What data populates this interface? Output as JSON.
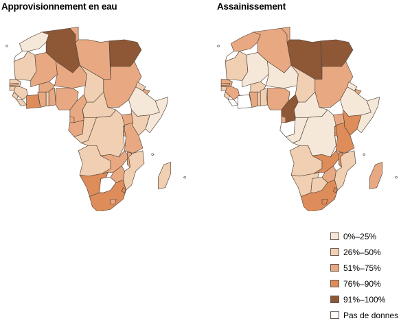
{
  "maps": [
    {
      "title": "Approvisionnement en eau",
      "regions": [
        {
          "id": "morocco",
          "cat": 0
        },
        {
          "id": "western-sahara",
          "cat": 5
        },
        {
          "id": "algeria",
          "cat": 4
        },
        {
          "id": "tunisia",
          "cat": 2
        },
        {
          "id": "libya",
          "cat": 2
        },
        {
          "id": "egypt",
          "cat": 4
        },
        {
          "id": "mauritania",
          "cat": 1
        },
        {
          "id": "senegal",
          "cat": 1
        },
        {
          "id": "gambia",
          "cat": 2
        },
        {
          "id": "guinea-bissau",
          "cat": 1
        },
        {
          "id": "guinea",
          "cat": 1
        },
        {
          "id": "sierra-leone",
          "cat": 1
        },
        {
          "id": "liberia",
          "cat": 1
        },
        {
          "id": "ivory-coast",
          "cat": 3
        },
        {
          "id": "mali",
          "cat": 2
        },
        {
          "id": "burkina-faso",
          "cat": 2
        },
        {
          "id": "ghana",
          "cat": 2
        },
        {
          "id": "togo",
          "cat": 1
        },
        {
          "id": "benin",
          "cat": 2
        },
        {
          "id": "niger",
          "cat": 2
        },
        {
          "id": "nigeria",
          "cat": 2
        },
        {
          "id": "chad",
          "cat": 1
        },
        {
          "id": "sudan",
          "cat": 2
        },
        {
          "id": "eritrea",
          "cat": 1
        },
        {
          "id": "djibouti",
          "cat": 2
        },
        {
          "id": "ethiopia",
          "cat": 0
        },
        {
          "id": "somalia",
          "cat": 0
        },
        {
          "id": "cameroon",
          "cat": 2
        },
        {
          "id": "car",
          "cat": 1
        },
        {
          "id": "eq-guinea",
          "cat": 2
        },
        {
          "id": "gabon",
          "cat": 2
        },
        {
          "id": "congo",
          "cat": 1
        },
        {
          "id": "drc",
          "cat": 1
        },
        {
          "id": "uganda",
          "cat": 2
        },
        {
          "id": "kenya",
          "cat": 1
        },
        {
          "id": "rwanda",
          "cat": 1
        },
        {
          "id": "burundi",
          "cat": 2
        },
        {
          "id": "tanzania",
          "cat": 2
        },
        {
          "id": "angola",
          "cat": 1
        },
        {
          "id": "zambia",
          "cat": 2
        },
        {
          "id": "malawi",
          "cat": 2
        },
        {
          "id": "mozambique",
          "cat": 1
        },
        {
          "id": "zimbabwe",
          "cat": 2
        },
        {
          "id": "namibia",
          "cat": 3
        },
        {
          "id": "botswana",
          "cat": 5
        },
        {
          "id": "south-africa",
          "cat": 3
        },
        {
          "id": "lesotho",
          "cat": 2
        },
        {
          "id": "swaziland",
          "cat": 3
        },
        {
          "id": "madagascar",
          "cat": 1
        }
      ]
    },
    {
      "title": "Assainissement",
      "regions": [
        {
          "id": "morocco",
          "cat": 2
        },
        {
          "id": "western-sahara",
          "cat": 5
        },
        {
          "id": "algeria",
          "cat": 2
        },
        {
          "id": "tunisia",
          "cat": 2
        },
        {
          "id": "libya",
          "cat": 4
        },
        {
          "id": "egypt",
          "cat": 4
        },
        {
          "id": "mauritania",
          "cat": 1
        },
        {
          "id": "senegal",
          "cat": 2
        },
        {
          "id": "gambia",
          "cat": 2
        },
        {
          "id": "guinea-bissau",
          "cat": 1
        },
        {
          "id": "guinea",
          "cat": 2
        },
        {
          "id": "sierra-leone",
          "cat": 1
        },
        {
          "id": "liberia",
          "cat": 5
        },
        {
          "id": "ivory-coast",
          "cat": 5
        },
        {
          "id": "mali",
          "cat": 0
        },
        {
          "id": "burkina-faso",
          "cat": 1
        },
        {
          "id": "ghana",
          "cat": 2
        },
        {
          "id": "togo",
          "cat": 1
        },
        {
          "id": "benin",
          "cat": 1
        },
        {
          "id": "niger",
          "cat": 0
        },
        {
          "id": "nigeria",
          "cat": 2
        },
        {
          "id": "chad",
          "cat": 1
        },
        {
          "id": "sudan",
          "cat": 2
        },
        {
          "id": "eritrea",
          "cat": 0
        },
        {
          "id": "djibouti",
          "cat": 2
        },
        {
          "id": "ethiopia",
          "cat": 0
        },
        {
          "id": "somalia",
          "cat": 0
        },
        {
          "id": "cameroon",
          "cat": 4
        },
        {
          "id": "car",
          "cat": 0
        },
        {
          "id": "eq-guinea",
          "cat": 2
        },
        {
          "id": "gabon",
          "cat": 5
        },
        {
          "id": "congo",
          "cat": 0
        },
        {
          "id": "drc",
          "cat": 0
        },
        {
          "id": "uganda",
          "cat": 2
        },
        {
          "id": "kenya",
          "cat": 3
        },
        {
          "id": "rwanda",
          "cat": 3
        },
        {
          "id": "burundi",
          "cat": 3
        },
        {
          "id": "tanzania",
          "cat": 3
        },
        {
          "id": "angola",
          "cat": 1
        },
        {
          "id": "zambia",
          "cat": 3
        },
        {
          "id": "malawi",
          "cat": 3
        },
        {
          "id": "mozambique",
          "cat": 1
        },
        {
          "id": "zimbabwe",
          "cat": 2
        },
        {
          "id": "namibia",
          "cat": 1
        },
        {
          "id": "botswana",
          "cat": 1
        },
        {
          "id": "south-africa",
          "cat": 3
        },
        {
          "id": "lesotho",
          "cat": 3
        },
        {
          "id": "swaziland",
          "cat": 3
        },
        {
          "id": "madagascar",
          "cat": 2
        }
      ]
    }
  ],
  "legend": [
    {
      "label": "0%–25%",
      "color": "#f6e8d9"
    },
    {
      "label": "26%–50%",
      "color": "#f0cfb2"
    },
    {
      "label": "51%–75%",
      "color": "#e8a982"
    },
    {
      "label": "76%–90%",
      "color": "#de8c5a"
    },
    {
      "label": "91%–100%",
      "color": "#8e5736"
    },
    {
      "label": "Pas de donnes",
      "color": "#ffffff"
    }
  ]
}
